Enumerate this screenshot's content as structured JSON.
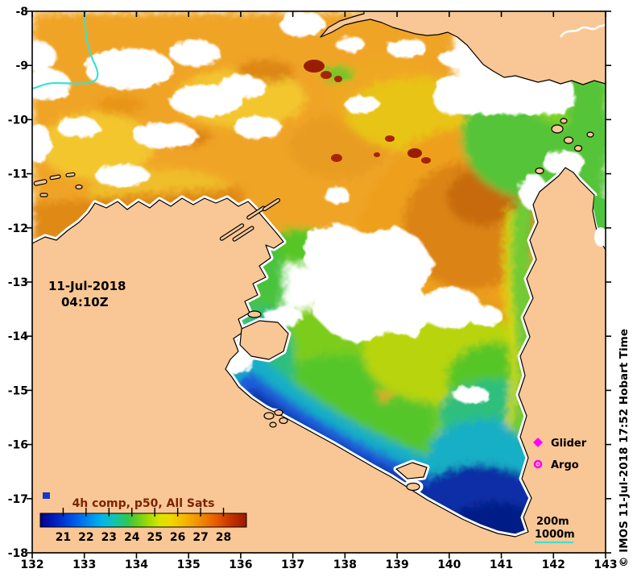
{
  "annotation": {
    "line1": "11-Jul-2018",
    "line2": "04:10Z"
  },
  "axes": {
    "x_ticks": [
      "132",
      "133",
      "134",
      "135",
      "136",
      "137",
      "138",
      "139",
      "140",
      "141",
      "142",
      "143"
    ],
    "y_ticks": [
      "-8",
      "-9",
      "-10",
      "-11",
      "-12",
      "-13",
      "-14",
      "-15",
      "-16",
      "-17",
      "-18"
    ]
  },
  "colorbar": {
    "title": "4h comp, p50, All Sats",
    "tick_labels": [
      "21",
      "22",
      "23",
      "24",
      "25",
      "26",
      "27",
      "28"
    ],
    "palette": [
      [
        "0%",
        "#000089"
      ],
      [
        "8%",
        "#0023c4"
      ],
      [
        "16%",
        "#0055e8"
      ],
      [
        "24%",
        "#008df0"
      ],
      [
        "30%",
        "#00b6e8"
      ],
      [
        "36%",
        "#12c4ae"
      ],
      [
        "42%",
        "#2cc65a"
      ],
      [
        "47%",
        "#68ce1c"
      ],
      [
        "53%",
        "#a8dc02"
      ],
      [
        "58%",
        "#d8e400"
      ],
      [
        "63%",
        "#f0d800"
      ],
      [
        "69%",
        "#f6bc00"
      ],
      [
        "75%",
        "#f49a00"
      ],
      [
        "81%",
        "#ee7600"
      ],
      [
        "87%",
        "#e05200"
      ],
      [
        "93%",
        "#c03000"
      ],
      [
        "100%",
        "#9b1a00"
      ]
    ]
  },
  "legend": {
    "items": [
      {
        "label": "Glider",
        "marker": "diamond-icon",
        "color": "#ff00ff"
      },
      {
        "label": "Argo",
        "marker": "circle-icon",
        "color": "#ff00ff"
      }
    ]
  },
  "depth_legend": {
    "items": [
      {
        "label": "200m"
      },
      {
        "label": "1000m",
        "line_color": "#3ce0d4"
      }
    ]
  },
  "watermark": "© IMOS 11-Jul-2018 17:52 Hobart Time",
  "colors": {
    "land": "#f9c795",
    "coastline": "#000000",
    "cloud": "#ffffff",
    "frame": "#000000",
    "contour_1000m": "#3ce0d4",
    "marker_magenta": "#ff00ff",
    "colorbar_title": "#7c2200"
  }
}
